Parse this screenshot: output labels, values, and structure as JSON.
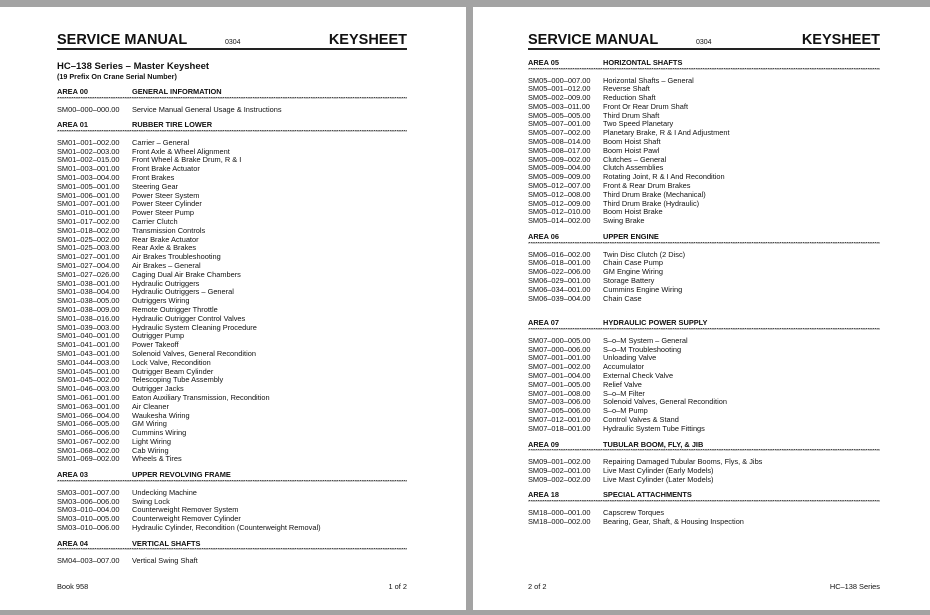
{
  "pages": [
    {
      "header": {
        "left": "SERVICE MANUAL",
        "code": "0304",
        "right": "KEYSHEET"
      },
      "title": "HC–138 Series – Master Keysheet",
      "subtitle": "(19 Prefix On Crane Serial Number)",
      "sections": [
        {
          "area": "AREA  00",
          "name": "GENERAL INFORMATION",
          "items": [
            [
              "SM00–000–000.00",
              "Service Manual General Usage & Instructions"
            ]
          ]
        },
        {
          "area": "AREA  01",
          "name": "RUBBER TIRE LOWER",
          "items": [
            [
              "SM01–001–002.00",
              "Carrier – General"
            ],
            [
              "SM01–002–003.00",
              "Front Axle & Wheel Alignment"
            ],
            [
              "SM01–002–015.00",
              "Front Wheel & Brake Drum, R & I"
            ],
            [
              "SM01–003–001.00",
              "Front Brake Actuator"
            ],
            [
              "SM01–003–004.00",
              "Front Brakes"
            ],
            [
              "SM01–005–001.00",
              "Steering Gear"
            ],
            [
              "SM01–006–001.00",
              "Power Steer System"
            ],
            [
              "SM01–007–001.00",
              "Power Steer Cylinder"
            ],
            [
              "SM01–010–001.00",
              "Power Steer Pump"
            ],
            [
              "SM01–017–002.00",
              "Carrier Clutch"
            ],
            [
              "SM01–018–002.00",
              "Transmission Controls"
            ],
            [
              "SM01–025–002.00",
              "Rear Brake Actuator"
            ],
            [
              "SM01–025–003.00",
              "Rear Axle & Brakes"
            ],
            [
              "SM01–027–001.00",
              "Air Brakes Troubleshooting"
            ],
            [
              "SM01–027–004.00",
              "Air Brakes – General"
            ],
            [
              "SM01–027–026.00",
              "Caging Dual Air Brake Chambers"
            ],
            [
              "SM01–038–001.00",
              "Hydraulic Outriggers"
            ],
            [
              "SM01–038–004.00",
              "Hydraulic Outriggers – General"
            ],
            [
              "SM01–038–005.00",
              "Outriggers Wiring"
            ],
            [
              "SM01–038–009.00",
              "Remote Outrigger Throttle"
            ],
            [
              "SM01–038–016.00",
              "Hydraulic Outrigger Control Valves"
            ],
            [
              "SM01–039–003.00",
              "Hydraulic System Cleaning Procedure"
            ],
            [
              "SM01–040–001.00",
              "Outrigger Pump"
            ],
            [
              "SM01–041–001.00",
              "Power Takeoff"
            ],
            [
              "SM01–043–001.00",
              "Solenoid Valves, General Recondition"
            ],
            [
              "SM01–044–003.00",
              "Lock Valve, Recondition"
            ],
            [
              "SM01–045–001.00",
              "Outrigger Beam Cylinder"
            ],
            [
              "SM01–045–002.00",
              "Telescoping Tube Assembly"
            ],
            [
              "SM01–046–003.00",
              "Outrigger Jacks"
            ],
            [
              "SM01–061–001.00",
              "Eaton Auxiliary Transmission, Recondition"
            ],
            [
              "SM01–063–001.00",
              "Air Cleaner"
            ],
            [
              "SM01–066–004.00",
              "Waukesha Wiring"
            ],
            [
              "SM01–066–005.00",
              "GM Wiring"
            ],
            [
              "SM01–066–006.00",
              "Cummins Wiring"
            ],
            [
              "SM01–067–002.00",
              "Light Wiring"
            ],
            [
              "SM01–068–002.00",
              "Cab Wiring"
            ],
            [
              "SM01–069–002.00",
              "Wheels & Tires"
            ]
          ]
        },
        {
          "area": "AREA  03",
          "name": "UPPER REVOLVING FRAME",
          "items": [
            [
              "SM03–001–007.00",
              "Undecking Machine"
            ],
            [
              "SM03–006–006.00",
              "Swing Lock"
            ],
            [
              "SM03–010–004.00",
              "Counterweight Remover System"
            ],
            [
              "SM03–010–005.00",
              "Counterweight Remover Cylinder"
            ],
            [
              "SM03–010–006.00",
              "Hydraulic Cylinder, Recondition (Counterweight Removal)"
            ]
          ]
        },
        {
          "area": "AREA  04",
          "name": "VERTICAL SHAFTS",
          "items": [
            [
              "SM04–003–007.00",
              "Vertical Swing Shaft"
            ]
          ]
        }
      ],
      "footer": {
        "left": "Book 958",
        "right": "1 of 2"
      }
    },
    {
      "header": {
        "left": "SERVICE MANUAL",
        "code": "0304",
        "right": "KEYSHEET"
      },
      "sections": [
        {
          "area": "AREA  05",
          "name": "HORIZONTAL SHAFTS",
          "items": [
            [
              "SM05–000–007.00",
              "Horizontal Shafts – General"
            ],
            [
              "SM05–001–012.00",
              "Reverse Shaft"
            ],
            [
              "SM05–002–009.00",
              "Reduction Shaft"
            ],
            [
              "SM05–003–011.00",
              "Front Or Rear Drum Shaft"
            ],
            [
              "SM05–005–005.00",
              "Third Drum Shaft"
            ],
            [
              "SM05–007–001.00",
              "Two Speed Planetary"
            ],
            [
              "SM05–007–002.00",
              "Planetary Brake, R & I And Adjustment"
            ],
            [
              "SM05–008–014.00",
              "Boom Hoist Shaft"
            ],
            [
              "SM05–008–017.00",
              "Boom Hoist Pawl"
            ],
            [
              "SM05–009–002.00",
              "Clutches – General"
            ],
            [
              "SM05–009–004.00",
              "Clutch Assemblies"
            ],
            [
              "SM05–009–009.00",
              "Rotating Joint, R & I And Recondition"
            ],
            [
              "SM05–012–007.00",
              "Front & Rear Drum Brakes"
            ],
            [
              "SM05–012–008.00",
              "Third Drum Brake (Mechanical)"
            ],
            [
              "SM05–012–009.00",
              "Third Drum Brake (Hydraulic)"
            ],
            [
              "SM05–012–010.00",
              "Boom Hoist Brake"
            ],
            [
              "SM05–014–002.00",
              "Swing Brake"
            ]
          ]
        },
        {
          "area": "AREA  06",
          "name": "UPPER ENGINE",
          "items": [
            [
              "SM06–016–002.00",
              "Twin Disc Clutch (2 Disc)"
            ],
            [
              "SM06–018–001.00",
              "Chain Case Pump"
            ],
            [
              "SM06–022–006.00",
              "GM Engine Wiring"
            ],
            [
              "SM06–029–001.00",
              "Storage Battery"
            ],
            [
              "SM06–034–001.00",
              "Cummins Engine Wiring"
            ],
            [
              "SM06–039–004.00",
              "Chain Case"
            ]
          ]
        },
        {
          "area": "AREA  07",
          "name": "HYDRAULIC POWER SUPPLY",
          "gap": true,
          "items": [
            [
              "SM07–000–005.00",
              "S–o–M System – General"
            ],
            [
              "SM07–000–006.00",
              "S–o–M Troubleshooting"
            ],
            [
              "SM07–001–001.00",
              "Unloading Valve"
            ],
            [
              "SM07–001–002.00",
              "Accumulator"
            ],
            [
              "SM07–001–004.00",
              "External Check Valve"
            ],
            [
              "SM07–001–005.00",
              "Relief Valve"
            ],
            [
              "SM07–001–008.00",
              "S–o–M Filter"
            ],
            [
              "SM07–003–006.00",
              "Solenoid Valves, General Recondition"
            ],
            [
              "SM07–005–006.00",
              "S–o–M Pump"
            ],
            [
              "SM07–012–001.00",
              "Control Valves & Stand"
            ],
            [
              "SM07–018–001.00",
              "Hydraulic System Tube Fittings"
            ]
          ]
        },
        {
          "area": "AREA  09",
          "name": "TUBULAR BOOM, FLY, & JIB",
          "items": [
            [
              "SM09–001–002.00",
              "Repairing Damaged Tubular Booms, Flys, & Jibs"
            ],
            [
              "SM09–002–001.00",
              "Live Mast Cylinder (Early Models)"
            ],
            [
              "SM09–002–002.00",
              "Live Mast Cylinder (Later Models)"
            ]
          ]
        },
        {
          "area": "AREA  18",
          "name": "SPECIAL ATTACHMENTS",
          "items": [
            [
              "SM18–000–001.00",
              "Capscrew Torques"
            ],
            [
              "SM18–000–002.00",
              "Bearing, Gear, Shaft, & Housing Inspection"
            ]
          ]
        }
      ],
      "footer": {
        "left": "2 of 2",
        "right": "HC–138 Series"
      }
    }
  ]
}
